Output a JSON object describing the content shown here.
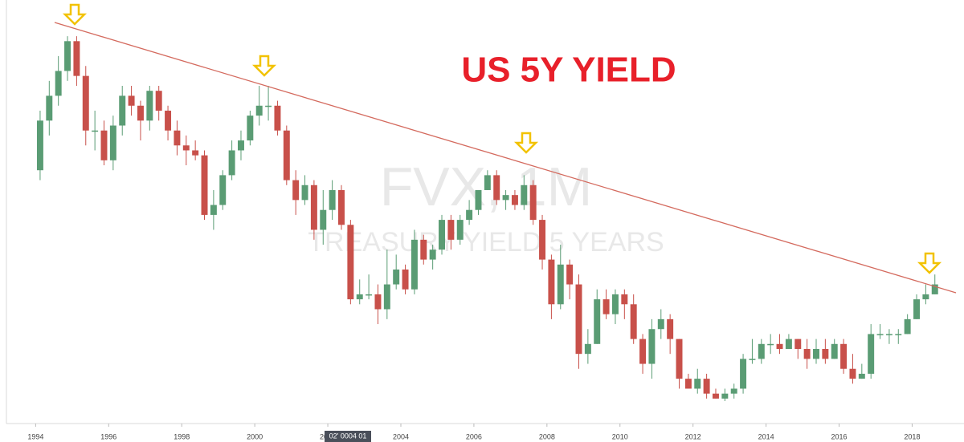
{
  "chart_data": {
    "type": "candlestick",
    "title": "US 5Y YIELD",
    "watermark": "FVX, 1M",
    "watermark_subtitle": "TREASURY YIELD 5 YEARS",
    "crosshair_label": "02' 0004 01",
    "up_color": "#5a9c74",
    "down_color": "#c8504a",
    "x": [
      1994,
      1994.25,
      1994.5,
      1994.75,
      1995,
      1995.25,
      1995.5,
      1995.75,
      1996,
      1996.25,
      1996.5,
      1996.75,
      1997,
      1997.25,
      1997.5,
      1997.75,
      1998,
      1998.25,
      1998.5,
      1998.75,
      1999,
      1999.25,
      1999.5,
      1999.75,
      2000,
      2000.25,
      2000.5,
      2000.75,
      2001,
      2001.25,
      2001.5,
      2001.75,
      2002,
      2002.25,
      2002.5,
      2002.75,
      2003,
      2003.25,
      2003.5,
      2003.75,
      2004,
      2004.25,
      2004.5,
      2004.75,
      2005,
      2005.25,
      2005.5,
      2005.75,
      2006,
      2006.25,
      2006.5,
      2006.75,
      2007,
      2007.25,
      2007.5,
      2007.75,
      2008,
      2008.25,
      2008.5,
      2008.75,
      2009,
      2009.25,
      2009.5,
      2009.75,
      2010,
      2010.25,
      2010.5,
      2010.75,
      2011,
      2011.25,
      2011.5,
      2011.75,
      2012,
      2012.25,
      2012.5,
      2012.75,
      2013,
      2013.25,
      2013.5,
      2013.75,
      2014,
      2014.25,
      2014.5,
      2014.75,
      2015,
      2015.25,
      2015.5,
      2015.75,
      2016,
      2016.25,
      2016.5,
      2016.75,
      2017,
      2017.25,
      2017.5,
      2017.75,
      2018,
      2018.25,
      2018.5
    ],
    "open": [
      5.2,
      6.2,
      6.7,
      7.2,
      7.8,
      7.1,
      6.0,
      6.0,
      5.4,
      6.1,
      6.7,
      6.5,
      6.2,
      6.8,
      6.4,
      6.0,
      5.7,
      5.6,
      5.5,
      4.3,
      4.5,
      5.1,
      5.6,
      5.8,
      6.3,
      6.5,
      6.5,
      6.0,
      5.0,
      4.6,
      4.9,
      4.0,
      4.4,
      4.8,
      4.1,
      2.6,
      2.7,
      2.7,
      2.4,
      2.9,
      3.2,
      2.8,
      3.8,
      3.4,
      3.6,
      4.2,
      3.8,
      4.2,
      4.4,
      4.8,
      5.1,
      4.6,
      4.7,
      4.5,
      4.9,
      4.2,
      3.4,
      2.5,
      3.3,
      2.9,
      1.5,
      1.7,
      2.6,
      2.3,
      2.7,
      2.5,
      1.8,
      1.3,
      2.0,
      2.2,
      1.8,
      1.0,
      0.8,
      1.0,
      0.7,
      0.6,
      0.7,
      0.8,
      1.4,
      1.4,
      1.7,
      1.7,
      1.6,
      1.8,
      1.6,
      1.4,
      1.6,
      1.4,
      1.7,
      1.2,
      1.0,
      1.1,
      1.9,
      1.9,
      1.9,
      1.9,
      2.2,
      2.6,
      2.7
    ],
    "high": [
      6.4,
      7.0,
      7.5,
      7.9,
      7.9,
      7.3,
      6.4,
      6.2,
      6.3,
      6.9,
      6.9,
      6.6,
      6.9,
      6.9,
      6.5,
      6.2,
      5.9,
      5.8,
      5.6,
      4.8,
      5.2,
      5.8,
      6.0,
      6.4,
      6.9,
      6.9,
      6.6,
      6.1,
      5.2,
      5.1,
      5.0,
      4.8,
      5.0,
      4.9,
      4.2,
      3.0,
      3.1,
      2.9,
      3.6,
      3.5,
      3.3,
      4.0,
      3.9,
      3.7,
      4.3,
      4.3,
      4.3,
      4.6,
      4.8,
      5.2,
      5.2,
      4.8,
      4.8,
      5.1,
      5.0,
      4.3,
      3.5,
      3.7,
      3.4,
      3.1,
      2.0,
      2.8,
      2.8,
      2.8,
      2.8,
      2.7,
      1.9,
      2.2,
      2.4,
      2.3,
      1.8,
      1.1,
      1.2,
      1.1,
      0.8,
      0.8,
      0.9,
      1.5,
      1.8,
      1.8,
      1.9,
      1.9,
      1.9,
      1.8,
      1.8,
      1.8,
      1.8,
      1.8,
      1.8,
      1.5,
      1.3,
      2.1,
      2.1,
      2.0,
      2.0,
      2.3,
      2.7,
      2.9,
      3.1
    ],
    "low": [
      5.0,
      5.9,
      6.5,
      7.0,
      6.9,
      5.7,
      5.6,
      5.3,
      5.2,
      5.9,
      6.3,
      5.8,
      6.0,
      6.2,
      5.8,
      5.5,
      5.3,
      5.4,
      4.2,
      4.0,
      4.4,
      5.0,
      5.4,
      5.7,
      6.1,
      6.2,
      5.9,
      4.9,
      4.3,
      4.5,
      3.8,
      3.7,
      4.2,
      4.0,
      2.5,
      2.5,
      2.6,
      2.1,
      2.2,
      2.8,
      2.7,
      2.7,
      3.3,
      3.2,
      3.5,
      3.6,
      3.7,
      4.1,
      4.3,
      4.8,
      4.5,
      4.4,
      4.4,
      4.4,
      4.1,
      3.2,
      2.2,
      2.4,
      2.6,
      1.2,
      1.3,
      1.7,
      2.2,
      2.1,
      2.2,
      1.7,
      1.1,
      1.0,
      1.8,
      1.5,
      0.8,
      0.8,
      0.7,
      0.6,
      0.6,
      0.55,
      0.6,
      0.7,
      1.3,
      1.3,
      1.5,
      1.5,
      1.6,
      1.4,
      1.2,
      1.3,
      1.3,
      1.4,
      1.1,
      0.9,
      1.0,
      1.0,
      1.8,
      1.7,
      1.7,
      1.9,
      2.2,
      2.5,
      2.7
    ],
    "close": [
      6.2,
      6.7,
      7.2,
      7.8,
      7.1,
      6.0,
      6.0,
      5.4,
      6.1,
      6.7,
      6.5,
      6.2,
      6.8,
      6.4,
      6.0,
      5.7,
      5.6,
      5.5,
      4.3,
      4.5,
      5.1,
      5.6,
      5.8,
      6.3,
      6.5,
      6.5,
      6.0,
      5.0,
      4.6,
      4.9,
      4.0,
      4.4,
      4.8,
      4.1,
      2.6,
      2.7,
      2.7,
      2.4,
      2.9,
      3.2,
      2.8,
      3.8,
      3.4,
      3.6,
      4.2,
      3.8,
      4.2,
      4.4,
      4.8,
      5.1,
      4.6,
      4.7,
      4.5,
      4.9,
      4.2,
      3.4,
      2.5,
      3.3,
      2.9,
      1.5,
      1.7,
      2.6,
      2.3,
      2.7,
      2.5,
      1.8,
      1.3,
      2.0,
      2.2,
      1.8,
      1.0,
      0.8,
      1.0,
      0.7,
      0.6,
      0.7,
      0.8,
      1.4,
      1.4,
      1.7,
      1.7,
      1.6,
      1.8,
      1.6,
      1.4,
      1.6,
      1.4,
      1.7,
      1.2,
      1.0,
      1.1,
      1.9,
      1.9,
      1.9,
      1.9,
      2.2,
      2.6,
      2.7,
      2.9
    ],
    "xlim": [
      1993.2,
      2019.2
    ],
    "xticks": [
      1994,
      1996,
      1998,
      2000,
      2002,
      2004,
      2006,
      2008,
      2010,
      2012,
      2014,
      2016,
      2018
    ],
    "ylim": [
      0,
      8.5
    ]
  }
}
